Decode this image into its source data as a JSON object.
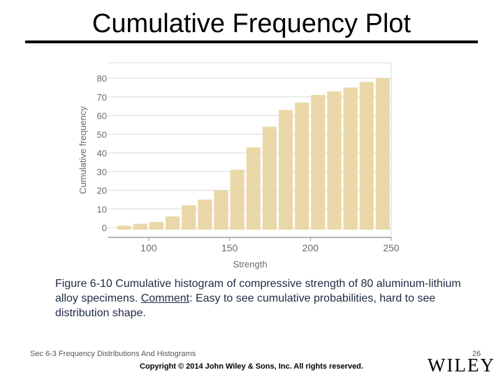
{
  "slide": {
    "title": "Cumulative Frequency Plot",
    "caption_prefix": "Figure 6-10  Cumulative histogram of compressive strength of 80 aluminum-lithium alloy specimens.  ",
    "caption_comment_label": "Comment",
    "caption_suffix": ":  Easy to see cumulative probabilities, hard to see distribution shape.",
    "footer_section": "Sec 6-3 Frequency Distributions And Histograms",
    "page_number": "26",
    "copyright": "Copyright © 2014 John Wiley & Sons, Inc.  All rights reserved.",
    "publisher_logo": "WILEY"
  },
  "chart_data": {
    "type": "bar",
    "title": "",
    "xlabel": "Strength",
    "ylabel": "Cumulative frequency",
    "x": [
      80,
      90,
      100,
      110,
      120,
      130,
      140,
      150,
      160,
      170,
      180,
      190,
      200,
      210,
      220,
      230,
      240
    ],
    "values": [
      1,
      2,
      3,
      6,
      12,
      15,
      20,
      31,
      43,
      54,
      63,
      67,
      71,
      73,
      75,
      78,
      80
    ],
    "bin_width": 10,
    "xlim": [
      75,
      250
    ],
    "ylim": [
      0,
      80
    ],
    "xticks": [
      100,
      150,
      200,
      250
    ],
    "yticks": [
      0,
      10,
      20,
      30,
      40,
      50,
      60,
      70,
      80
    ],
    "grid": true,
    "colors": {
      "bar": "#ead8a8",
      "grid": "#d8d8d8",
      "axis": "#9a9a9a",
      "text": "#6b6b6b"
    }
  }
}
